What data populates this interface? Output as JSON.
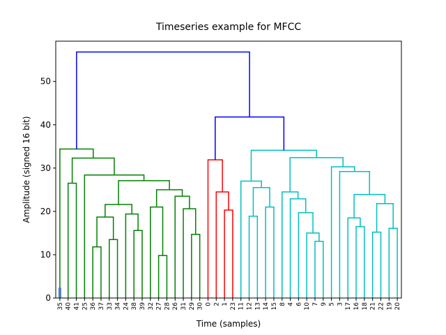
{
  "chart_data": {
    "type": "dendrogram",
    "title": "Timeseries example for MFCC",
    "xlabel": "Time (samples)",
    "ylabel": "Amplitude (signed 16 bit)",
    "ylim": [
      0,
      59.3
    ],
    "yticks": [
      0,
      10,
      20,
      30,
      40,
      50
    ],
    "categories": [
      "35",
      "40",
      "41",
      "25",
      "36",
      "37",
      "33",
      "34",
      "24",
      "38",
      "39",
      "32",
      "27",
      "28",
      "26",
      "31",
      "29",
      "30",
      "0",
      "2",
      "1",
      "23",
      "11",
      "12",
      "13",
      "14",
      "15",
      "8",
      "4",
      "6",
      "10",
      "7",
      "9",
      "5",
      "3",
      "17",
      "16",
      "18",
      "21",
      "22",
      "19",
      "20"
    ],
    "links": [
      {
        "children": [
          1,
          2
        ],
        "height": 26.5,
        "color": "#008000"
      },
      {
        "children": [
          4,
          5
        ],
        "height": 11.8,
        "color": "#008000"
      },
      {
        "children": [
          6,
          7
        ],
        "height": 13.5,
        "color": "#008000"
      },
      {
        "children": [
          43,
          44
        ],
        "height": 18.7,
        "color": "#008000"
      },
      {
        "children": [
          9,
          10
        ],
        "height": 15.6,
        "color": "#008000"
      },
      {
        "children": [
          8,
          46
        ],
        "height": 19.4,
        "color": "#008000"
      },
      {
        "children": [
          45,
          47
        ],
        "height": 21.6,
        "color": "#008000"
      },
      {
        "children": [
          12,
          13
        ],
        "height": 9.8,
        "color": "#008000"
      },
      {
        "children": [
          11,
          49
        ],
        "height": 21.0,
        "color": "#008000"
      },
      {
        "children": [
          16,
          17
        ],
        "height": 14.7,
        "color": "#008000"
      },
      {
        "children": [
          15,
          51
        ],
        "height": 20.6,
        "color": "#008000"
      },
      {
        "children": [
          14,
          52
        ],
        "height": 23.5,
        "color": "#008000"
      },
      {
        "children": [
          50,
          53
        ],
        "height": 25.0,
        "color": "#008000"
      },
      {
        "children": [
          48,
          54
        ],
        "height": 27.1,
        "color": "#008000"
      },
      {
        "children": [
          3,
          55
        ],
        "height": 28.4,
        "color": "#008000"
      },
      {
        "children": [
          42,
          56
        ],
        "height": 32.3,
        "color": "#008000"
      },
      {
        "children": [
          0,
          57
        ],
        "height": 34.4,
        "color": "#008000"
      },
      {
        "children": [
          20,
          21
        ],
        "height": 20.3,
        "color": "#ff0000"
      },
      {
        "children": [
          19,
          59
        ],
        "height": 24.5,
        "color": "#ff0000"
      },
      {
        "children": [
          18,
          60
        ],
        "height": 31.9,
        "color": "#ff0000"
      },
      {
        "children": [
          23,
          24
        ],
        "height": 18.9,
        "color": "#00bfbf"
      },
      {
        "children": [
          25,
          26
        ],
        "height": 21.0,
        "color": "#00bfbf"
      },
      {
        "children": [
          62,
          63
        ],
        "height": 25.5,
        "color": "#00bfbf"
      },
      {
        "children": [
          22,
          64
        ],
        "height": 27.0,
        "color": "#00bfbf"
      },
      {
        "children": [
          31,
          32
        ],
        "height": 13.1,
        "color": "#00bfbf"
      },
      {
        "children": [
          30,
          66
        ],
        "height": 15.0,
        "color": "#00bfbf"
      },
      {
        "children": [
          29,
          67
        ],
        "height": 19.7,
        "color": "#00bfbf"
      },
      {
        "children": [
          28,
          68
        ],
        "height": 22.9,
        "color": "#00bfbf"
      },
      {
        "children": [
          27,
          69
        ],
        "height": 24.5,
        "color": "#00bfbf"
      },
      {
        "children": [
          36,
          37
        ],
        "height": 16.5,
        "color": "#00bfbf"
      },
      {
        "children": [
          35,
          71
        ],
        "height": 18.5,
        "color": "#00bfbf"
      },
      {
        "children": [
          38,
          39
        ],
        "height": 15.2,
        "color": "#00bfbf"
      },
      {
        "children": [
          40,
          41
        ],
        "height": 16.1,
        "color": "#00bfbf"
      },
      {
        "children": [
          73,
          74
        ],
        "height": 21.8,
        "color": "#00bfbf"
      },
      {
        "children": [
          72,
          75
        ],
        "height": 23.9,
        "color": "#00bfbf"
      },
      {
        "children": [
          34,
          76
        ],
        "height": 29.2,
        "color": "#00bfbf"
      },
      {
        "children": [
          33,
          77
        ],
        "height": 30.3,
        "color": "#00bfbf"
      },
      {
        "children": [
          70,
          78
        ],
        "height": 32.4,
        "color": "#00bfbf"
      },
      {
        "children": [
          65,
          79
        ],
        "height": 34.1,
        "color": "#00bfbf"
      },
      {
        "children": [
          61,
          80
        ],
        "height": 41.8,
        "color": "#0000ff"
      },
      {
        "children": [
          58,
          81
        ],
        "height": 56.8,
        "color": "#0000ff"
      }
    ],
    "bar": {
      "index": 0,
      "value": 2.4,
      "color": "#4f81bd"
    }
  }
}
